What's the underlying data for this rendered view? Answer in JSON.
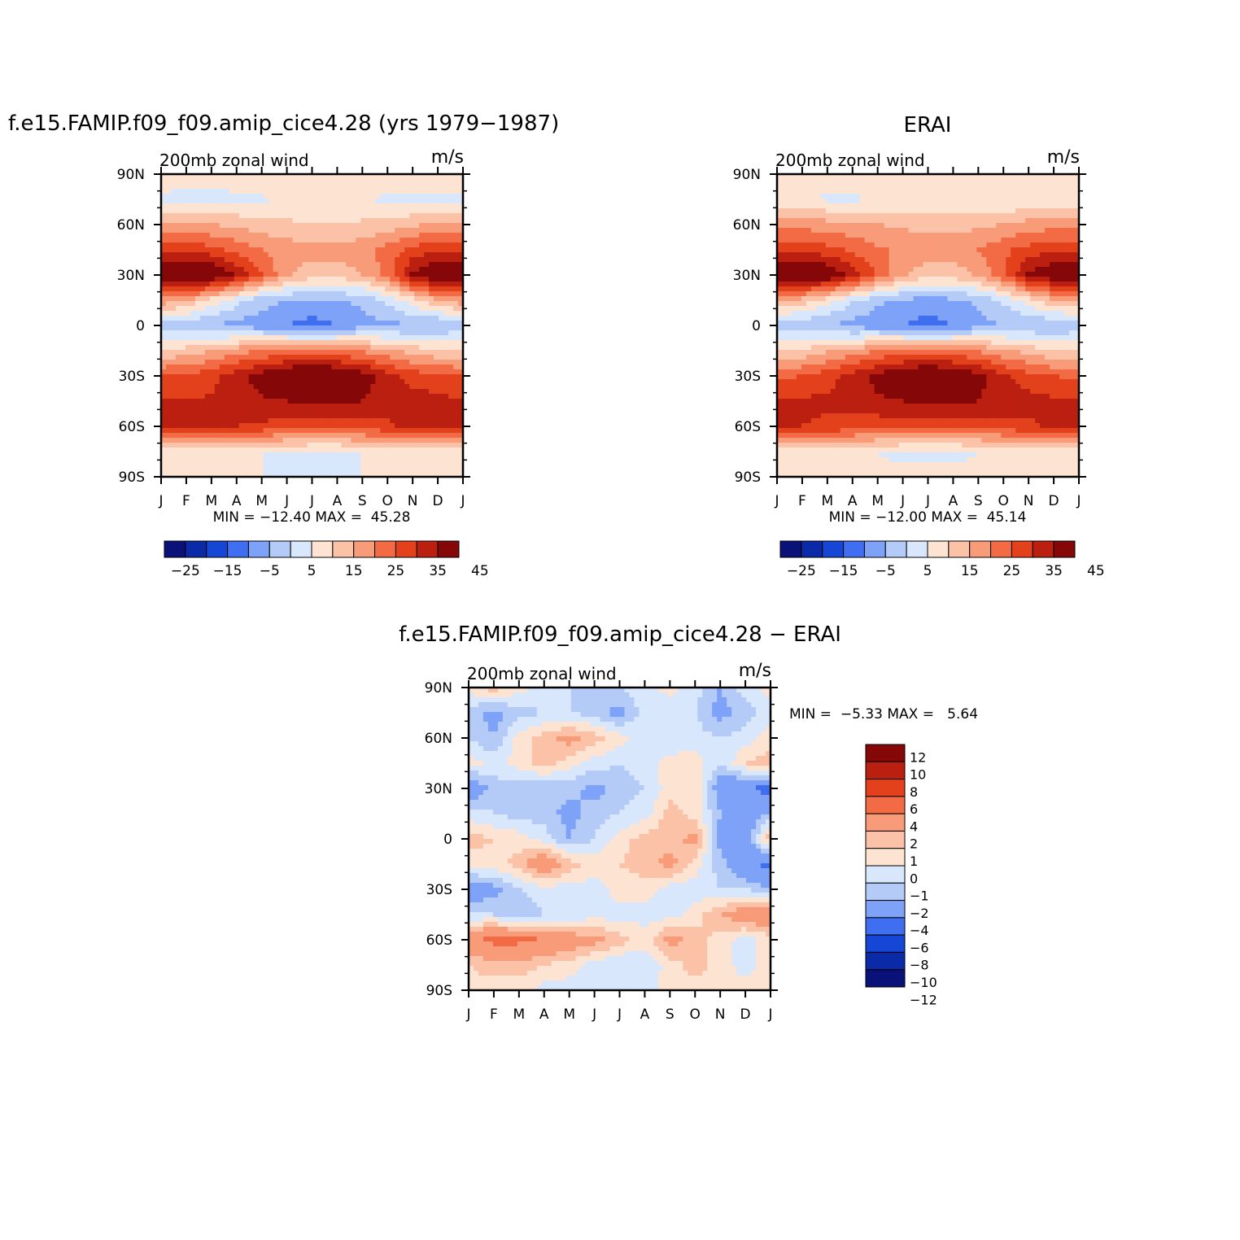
{
  "panels": [
    {
      "title": "f.e15.FAMIP.f09_f09.amip_cice4.28 (yrs 1979-1987)",
      "left_label": "200mb zonal wind",
      "right_label": "m/s",
      "stats": "MIN = -12.40 MAX =  45.28",
      "field": "model"
    },
    {
      "title": "ERAI",
      "left_label": "200mb zonal wind",
      "right_label": "m/s",
      "stats": "MIN = -12.00 MAX =  45.14",
      "field": "obs"
    },
    {
      "title": "f.e15.FAMIP.f09_f09.amip_cice4.28 - ERAI",
      "left_label": "200mb zonal wind",
      "right_label": "m/s",
      "stats": "MIN =  -5.33 MAX =   5.64",
      "field": "diff"
    }
  ],
  "axes": {
    "x_ticks": [
      "J",
      "F",
      "M",
      "A",
      "M",
      "J",
      "J",
      "A",
      "S",
      "O",
      "N",
      "D",
      "J"
    ],
    "y_ticks": [
      "90N",
      "60N",
      "30N",
      "0",
      "30S",
      "60S",
      "90S"
    ]
  },
  "colorbars": {
    "main": {
      "colors": [
        "#0a1178",
        "#0a2aa8",
        "#1646d6",
        "#3f6ef0",
        "#7da2f7",
        "#b4cbf8",
        "#d8e7fb",
        "#fde3d2",
        "#fcc2a8",
        "#f89b78",
        "#f26b45",
        "#e3401c",
        "#bb1f0f",
        "#850708"
      ],
      "labels": [
        "-25",
        "-15",
        "-5",
        "5",
        "15",
        "25",
        "35",
        "45"
      ]
    },
    "diff": {
      "colors": [
        "#850708",
        "#bb1f0f",
        "#e3401c",
        "#f26b45",
        "#f89b78",
        "#fcc2a8",
        "#fde3d2",
        "#d8e7fb",
        "#b4cbf8",
        "#7da2f7",
        "#3f6ef0",
        "#1646d6",
        "#0a2aa8",
        "#0a1178"
      ],
      "labels": [
        "12",
        "10",
        "8",
        "6",
        "4",
        "2",
        "1",
        "0",
        "-1",
        "-2",
        "-4",
        "-6",
        "-8",
        "-10",
        "-12"
      ]
    }
  },
  "chart_data": [
    {
      "type": "heatmap",
      "title": "f.e15.FAMIP.f09_f09.amip_cice4.28 (yrs 1979-1987)",
      "xlabel": "",
      "ylabel": "",
      "units": "m/s",
      "x": [
        "J",
        "F",
        "M",
        "A",
        "M",
        "J",
        "J",
        "A",
        "S",
        "O",
        "N",
        "D",
        "J"
      ],
      "y": [
        90,
        75,
        60,
        45,
        30,
        15,
        0,
        -15,
        -30,
        -45,
        -60,
        -75,
        -90
      ],
      "levels": [
        -30,
        -25,
        -20,
        -15,
        -10,
        -5,
        0,
        5,
        10,
        15,
        20,
        25,
        30,
        35,
        40,
        45,
        50
      ],
      "values": [
        [
          10,
          10,
          10,
          10,
          10,
          10,
          10,
          10,
          10,
          10,
          10,
          10,
          10
        ],
        [
          3,
          2,
          2,
          3,
          4,
          6,
          6,
          6,
          5,
          4,
          3,
          3,
          3
        ],
        [
          17,
          16,
          15,
          14,
          12,
          11,
          10,
          10,
          11,
          12,
          14,
          16,
          17
        ],
        [
          28,
          28,
          27,
          23,
          20,
          18,
          17,
          17,
          18,
          22,
          27,
          29,
          28
        ],
        [
          43,
          45,
          42,
          34,
          25,
          16,
          12,
          12,
          15,
          22,
          36,
          41,
          43
        ],
        [
          18,
          15,
          8,
          2,
          -3,
          -5,
          -6,
          -5,
          -4,
          1,
          8,
          15,
          18
        ],
        [
          -2,
          -3,
          -5,
          -7,
          -8,
          -10,
          -12,
          -10,
          -7,
          -6,
          -6,
          -6,
          -2
        ],
        [
          10,
          12,
          15,
          18,
          20,
          21,
          22,
          21,
          19,
          16,
          13,
          11,
          10
        ],
        [
          25,
          26,
          28,
          33,
          38,
          42,
          44,
          42,
          38,
          32,
          28,
          26,
          25
        ],
        [
          30,
          30,
          31,
          32,
          34,
          35,
          36,
          36,
          35,
          33,
          32,
          32,
          30
        ],
        [
          33,
          33,
          32,
          30,
          29,
          28,
          27,
          27,
          28,
          29,
          32,
          33,
          33
        ],
        [
          8,
          8,
          7,
          6,
          5,
          4,
          4,
          4,
          5,
          6,
          7,
          8,
          8
        ],
        [
          8,
          8,
          7,
          6,
          5,
          5,
          5,
          5,
          5,
          6,
          7,
          8,
          8
        ]
      ]
    },
    {
      "type": "heatmap",
      "title": "ERAI",
      "xlabel": "",
      "ylabel": "",
      "units": "m/s",
      "x": [
        "J",
        "F",
        "M",
        "A",
        "M",
        "J",
        "J",
        "A",
        "S",
        "O",
        "N",
        "D",
        "J"
      ],
      "y": [
        90,
        75,
        60,
        45,
        30,
        15,
        0,
        -15,
        -30,
        -45,
        -60,
        -75,
        -90
      ],
      "levels": [
        -30,
        -25,
        -20,
        -15,
        -10,
        -5,
        0,
        5,
        10,
        15,
        20,
        25,
        30,
        35,
        40,
        45,
        50
      ],
      "values": [
        [
          10,
          10,
          10,
          10,
          10,
          10,
          10,
          10,
          10,
          10,
          10,
          10,
          10
        ],
        [
          6,
          5,
          4,
          4,
          5,
          6,
          7,
          6,
          5,
          5,
          5,
          6,
          6
        ],
        [
          19,
          18,
          17,
          16,
          15,
          14,
          13,
          13,
          14,
          15,
          17,
          18,
          19
        ],
        [
          28,
          28,
          27,
          24,
          21,
          19,
          18,
          18,
          20,
          24,
          27,
          29,
          28
        ],
        [
          42,
          44,
          41,
          33,
          24,
          16,
          12,
          12,
          16,
          24,
          36,
          40,
          42
        ],
        [
          16,
          13,
          7,
          1,
          -4,
          -6,
          -7,
          -6,
          -4,
          1,
          8,
          14,
          16
        ],
        [
          -3,
          -4,
          -5,
          -7,
          -8,
          -10,
          -12,
          -10,
          -7,
          -5,
          -5,
          -5,
          -3
        ],
        [
          9,
          11,
          14,
          17,
          20,
          21,
          22,
          21,
          19,
          16,
          13,
          10,
          9
        ],
        [
          24,
          25,
          28,
          32,
          37,
          41,
          43,
          41,
          37,
          31,
          27,
          25,
          24
        ],
        [
          31,
          31,
          31,
          32,
          34,
          35,
          36,
          36,
          35,
          33,
          32,
          31,
          31
        ],
        [
          31,
          30,
          29,
          28,
          27,
          27,
          26,
          26,
          27,
          28,
          29,
          31,
          31
        ],
        [
          8,
          8,
          7,
          6,
          5,
          4,
          4,
          4,
          5,
          6,
          7,
          8,
          8
        ],
        [
          9,
          9,
          8,
          7,
          6,
          6,
          6,
          6,
          6,
          7,
          8,
          9,
          9
        ]
      ]
    },
    {
      "type": "heatmap",
      "title": "f.e15.FAMIP.f09_f09.amip_cice4.28 - ERAI",
      "xlabel": "",
      "ylabel": "",
      "units": "m/s",
      "x": [
        "J",
        "F",
        "M",
        "A",
        "M",
        "J",
        "J",
        "A",
        "S",
        "O",
        "N",
        "D",
        "J"
      ],
      "y": [
        90,
        75,
        60,
        45,
        30,
        15,
        0,
        -15,
        -30,
        -45,
        -60,
        -75,
        -90
      ],
      "levels": [
        -12,
        -10,
        -8,
        -6,
        -4,
        -2,
        -1,
        0,
        1,
        2,
        4,
        6,
        8,
        10,
        12
      ],
      "values": [
        [
          0.5,
          1.5,
          0.5,
          -0.5,
          -1,
          -2,
          -1,
          -0.5,
          0.5,
          -0.5,
          -2,
          -0.5,
          0.5
        ],
        [
          -1.5,
          -2.5,
          -1.5,
          -1,
          -1,
          -1.5,
          -2.5,
          -0.5,
          -1,
          -1,
          -2.5,
          -1.5,
          -0.5
        ],
        [
          -1,
          -2,
          0.5,
          1.5,
          2.5,
          1.5,
          0.5,
          -0.5,
          -1,
          -0.5,
          -1,
          -0.5,
          0.5
        ],
        [
          0.5,
          -0.5,
          0.5,
          1.5,
          0.5,
          -0.5,
          -1,
          -0.5,
          0.5,
          0.5,
          -1,
          1,
          1.5
        ],
        [
          -3.5,
          -1.5,
          -1.5,
          -2,
          -1.5,
          -2.5,
          -1.5,
          -1,
          0.5,
          1,
          -3,
          -4,
          -4.5
        ],
        [
          -0.5,
          -1,
          -1.5,
          -1.5,
          -2.5,
          -1.5,
          -1,
          -0.5,
          1.5,
          0.5,
          -2,
          -3,
          -2
        ],
        [
          1.5,
          1,
          0.5,
          -0.5,
          -2,
          -1,
          0.5,
          1.5,
          1.5,
          2.5,
          -2.5,
          -3,
          2
        ],
        [
          0.5,
          0.5,
          1.5,
          3.5,
          1.5,
          0.5,
          1,
          1.5,
          2.5,
          0.5,
          -1.5,
          -3.5,
          -4.5
        ],
        [
          -3,
          -2.5,
          -1,
          -0.5,
          -0.5,
          -0.5,
          0.5,
          0.5,
          -0.5,
          -0.5,
          -1,
          -1,
          -2
        ],
        [
          -1,
          -1,
          -2,
          -1,
          -1,
          -0.5,
          -0.5,
          -0.5,
          -0.5,
          0.5,
          2,
          3,
          3.5
        ],
        [
          3.5,
          4.5,
          4.5,
          4,
          3,
          2.5,
          1.5,
          0.5,
          2.5,
          1.5,
          0.5,
          -0.5,
          0.5
        ],
        [
          1,
          1.5,
          1.5,
          1,
          0.5,
          -0.5,
          -1,
          -1,
          0.5,
          1.5,
          0.5,
          -0.5,
          0.5
        ],
        [
          0.5,
          0.5,
          0.5,
          -0.5,
          -0.5,
          -0.5,
          -1,
          -0.5,
          0.5,
          0.5,
          0.5,
          0.5,
          0.5
        ]
      ]
    }
  ]
}
